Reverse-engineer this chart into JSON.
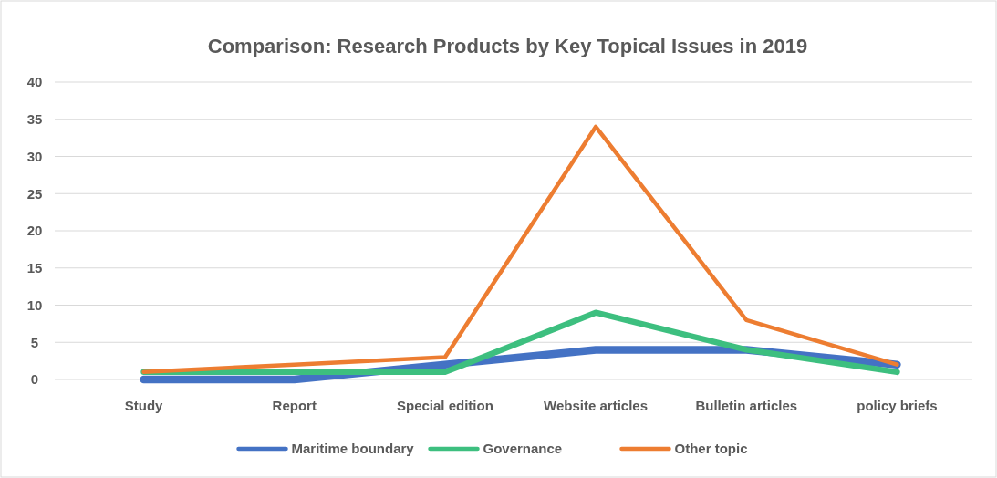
{
  "chart_data": {
    "type": "line",
    "title": "Comparison: Research Products by Key Topical Issues in 2019",
    "categories": [
      "Study",
      "Report",
      "Special edition",
      "Website articles",
      "Bulletin articles",
      "policy briefs"
    ],
    "series": [
      {
        "name": "Maritime boundary",
        "color": "#4472c4",
        "values": [
          0,
          0,
          2,
          4,
          4,
          2
        ]
      },
      {
        "name": "Governance",
        "color": "#3dbf7f",
        "values": [
          1,
          1,
          1,
          9,
          4,
          1
        ]
      },
      {
        "name": "Other topic",
        "color": "#ed7d31",
        "values": [
          1,
          2,
          3,
          34,
          8,
          2
        ]
      }
    ],
    "ylim": [
      0,
      40
    ],
    "yticks": [
      0,
      5,
      10,
      15,
      20,
      25,
      30,
      35,
      40
    ],
    "grid": "y",
    "legend": "bottom",
    "marker": "none",
    "line_style": "solid"
  }
}
